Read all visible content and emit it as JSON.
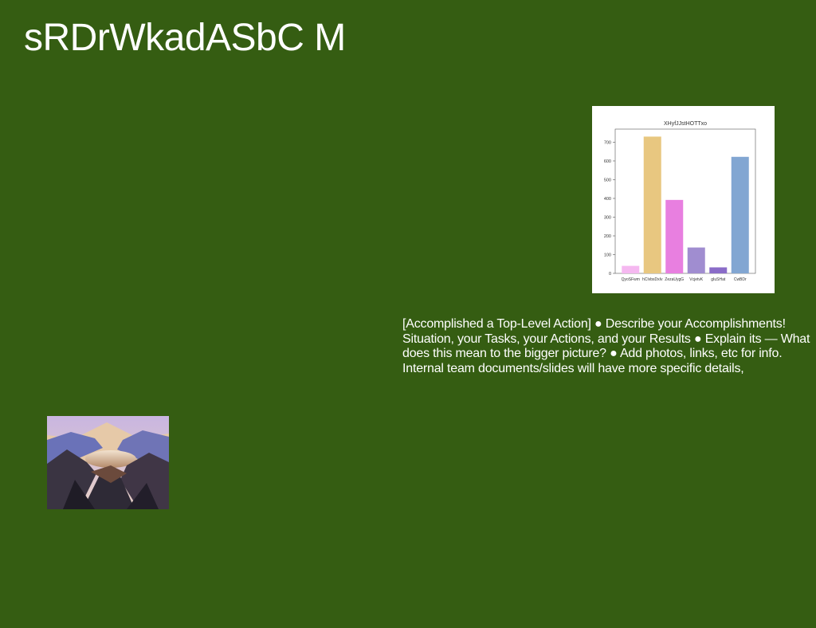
{
  "slide": {
    "title": "sRDrWkadASbC M",
    "body": "[Accomplished a Top-Level Action] ● Describe your Accomplishments! Situation, your Tasks, your Actions, and your Results ● Explain its — What does this mean to the bigger picture? ● Add photos, links, etc for info. Internal team documents/slides will have more specific details,",
    "background_color": "#355d12"
  },
  "photo": {
    "subject": "mountain-crater-lake-painting"
  },
  "chart_data": {
    "type": "bar",
    "title": "XHyfJJstHOTTxo",
    "categories": [
      "QyoSFwm",
      "hCIvbsDxIv",
      "ZezaUygG",
      "VcjetvK",
      "gIuSHat",
      "CwBDr"
    ],
    "values": [
      40,
      730,
      392,
      138,
      32,
      622
    ],
    "colors": [
      "#f5b8f0",
      "#e8c780",
      "#e87fe0",
      "#a08dd0",
      "#8a6cc8",
      "#82a6d2"
    ],
    "ylim": [
      0,
      770
    ],
    "yticks": [
      0,
      100,
      200,
      300,
      400,
      500,
      600,
      700
    ],
    "xlabel": "",
    "ylabel": "",
    "grid": false
  }
}
